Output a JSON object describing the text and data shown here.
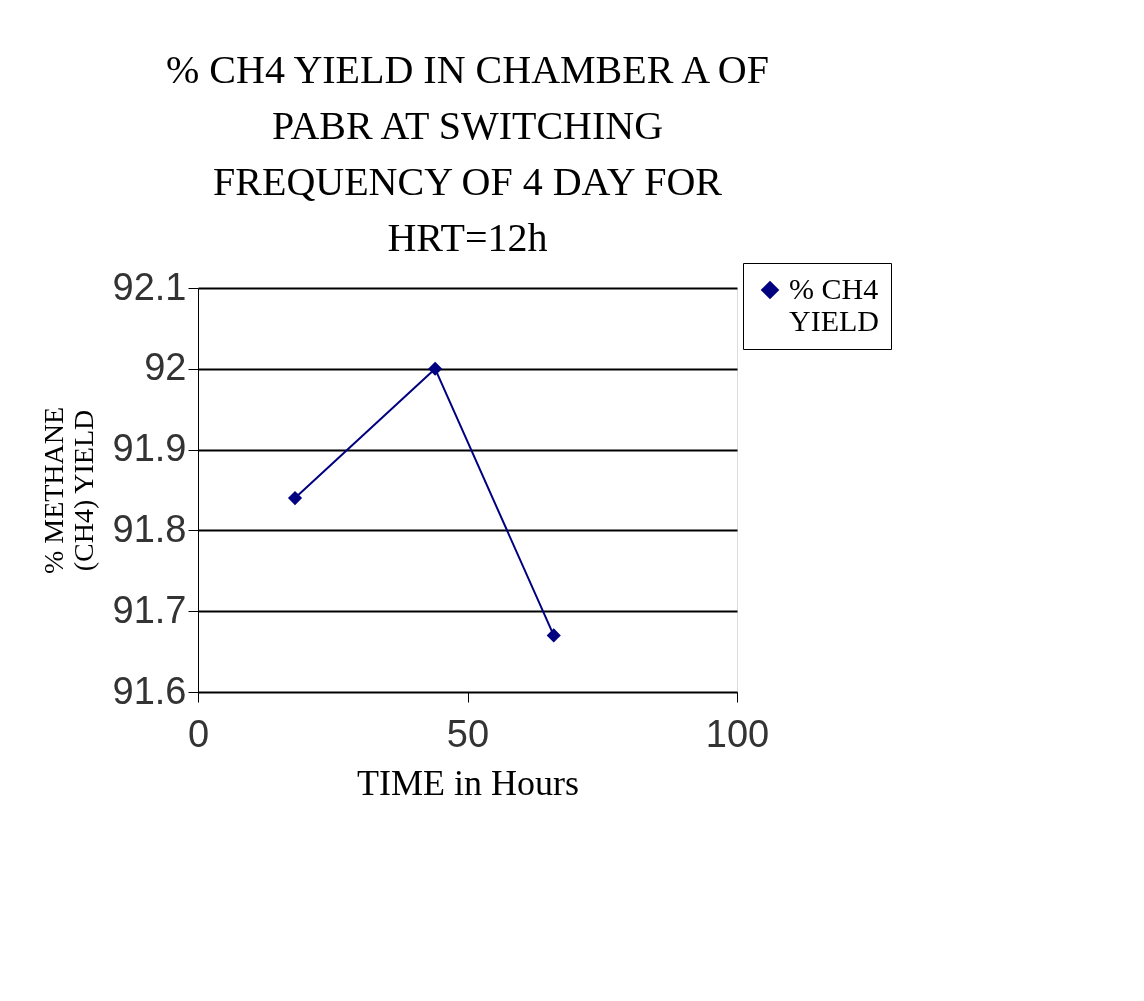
{
  "chart_data": {
    "type": "line",
    "title": "% CH4 YIELD IN CHAMBER A OF\nPABR AT SWITCHING\nFREQUENCY OF 4 DAY FOR\nHRT=12h",
    "xlabel": "TIME in Hours",
    "ylabel": "% METHANE\n(CH4) YIELD",
    "series": [
      {
        "name": "% CH4\nYIELD",
        "color": "#000080",
        "x": [
          18,
          44,
          66
        ],
        "values": [
          91.84,
          92.0,
          91.67
        ]
      }
    ],
    "xlim": [
      0,
      100
    ],
    "xticks": [
      0,
      50,
      100
    ],
    "ylim": [
      91.6,
      92.1
    ],
    "yticks": [
      91.6,
      91.7,
      91.8,
      91.9,
      92,
      92.1
    ],
    "grid": "y",
    "legend": "right",
    "marker": "diamond",
    "line_style": "solid"
  }
}
